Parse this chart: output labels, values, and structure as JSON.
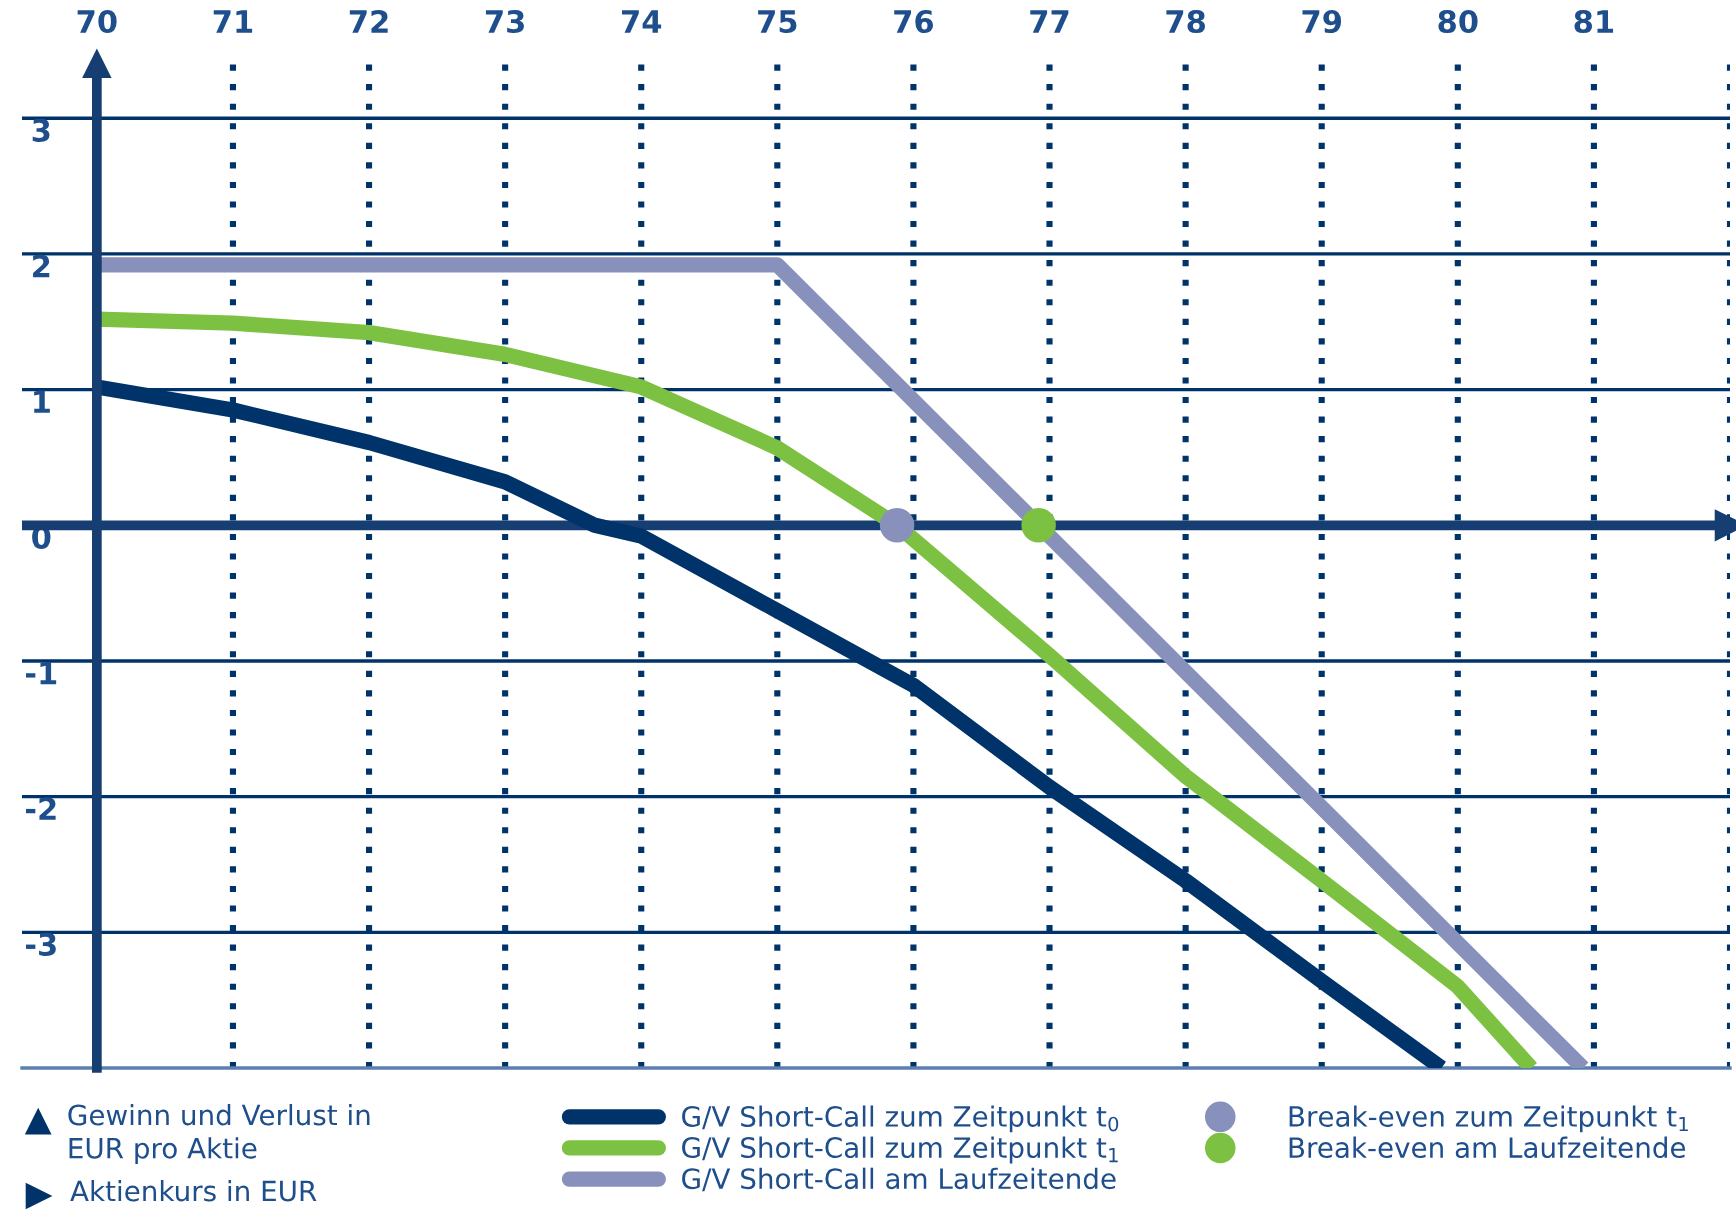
{
  "chart_data": {
    "type": "line",
    "xlabel": "Aktienkurs in EUR",
    "annotations": [
      "Gewinn und Verlust in\nEUR pro Aktie"
    ],
    "ref_lines": [
      {
        "axis": "y",
        "value": 0,
        "color": "#173e72"
      }
    ],
    "xlim": [
      69.45,
      82.0
    ],
    "ylim": [
      -4.0,
      3.4
    ],
    "xticks": [
      70,
      71,
      72,
      73,
      74,
      75,
      76,
      77,
      78,
      79,
      80,
      81,
      {
        "value": 82,
        "label": null
      }
    ],
    "yticks": [
      -3,
      -2,
      -1,
      0,
      1,
      2,
      3
    ],
    "grid": true,
    "legend": "bottom",
    "series": [
      {
        "name": "G/V Short-Call zum Zeitpunkt t$_{0}$",
        "color": "#003369",
        "x": [
          70,
          71,
          72,
          73,
          73.66,
          74,
          75,
          76,
          77,
          78,
          79,
          79.88
        ],
        "values": [
          1.02,
          0.85,
          0.61,
          0.32,
          0,
          -0.08,
          -0.63,
          -1.18,
          -1.93,
          -2.62,
          -3.36,
          -4.0
        ]
      },
      {
        "name": "G/V Short-Call zum Zeitpunkt t$_{1}$",
        "color": "#7dc142",
        "x": [
          70,
          71,
          72,
          73,
          74,
          75,
          75.88,
          77,
          78,
          79,
          80,
          80.54
        ],
        "values": [
          1.52,
          1.49,
          1.42,
          1.26,
          1.02,
          0.57,
          0,
          -0.96,
          -1.85,
          -2.62,
          -3.4,
          -4.0
        ]
      },
      {
        "name": "G/V Short-Call am Laufzeitende",
        "color": "#8891bb",
        "x": [
          70,
          75,
          80.92
        ],
        "values": [
          1.92,
          1.92,
          -4.0
        ]
      },
      {
        "name": "Break-even zum Zeitpunkt t$_{1}$",
        "type": "scatter",
        "color": "#8891bb",
        "x": [
          75.88
        ],
        "values": [
          0
        ]
      },
      {
        "name": "Break-even am Laufzeitende",
        "type": "scatter",
        "color": "#7dc142",
        "x": [
          76.92
        ],
        "values": [
          0
        ]
      }
    ]
  }
}
